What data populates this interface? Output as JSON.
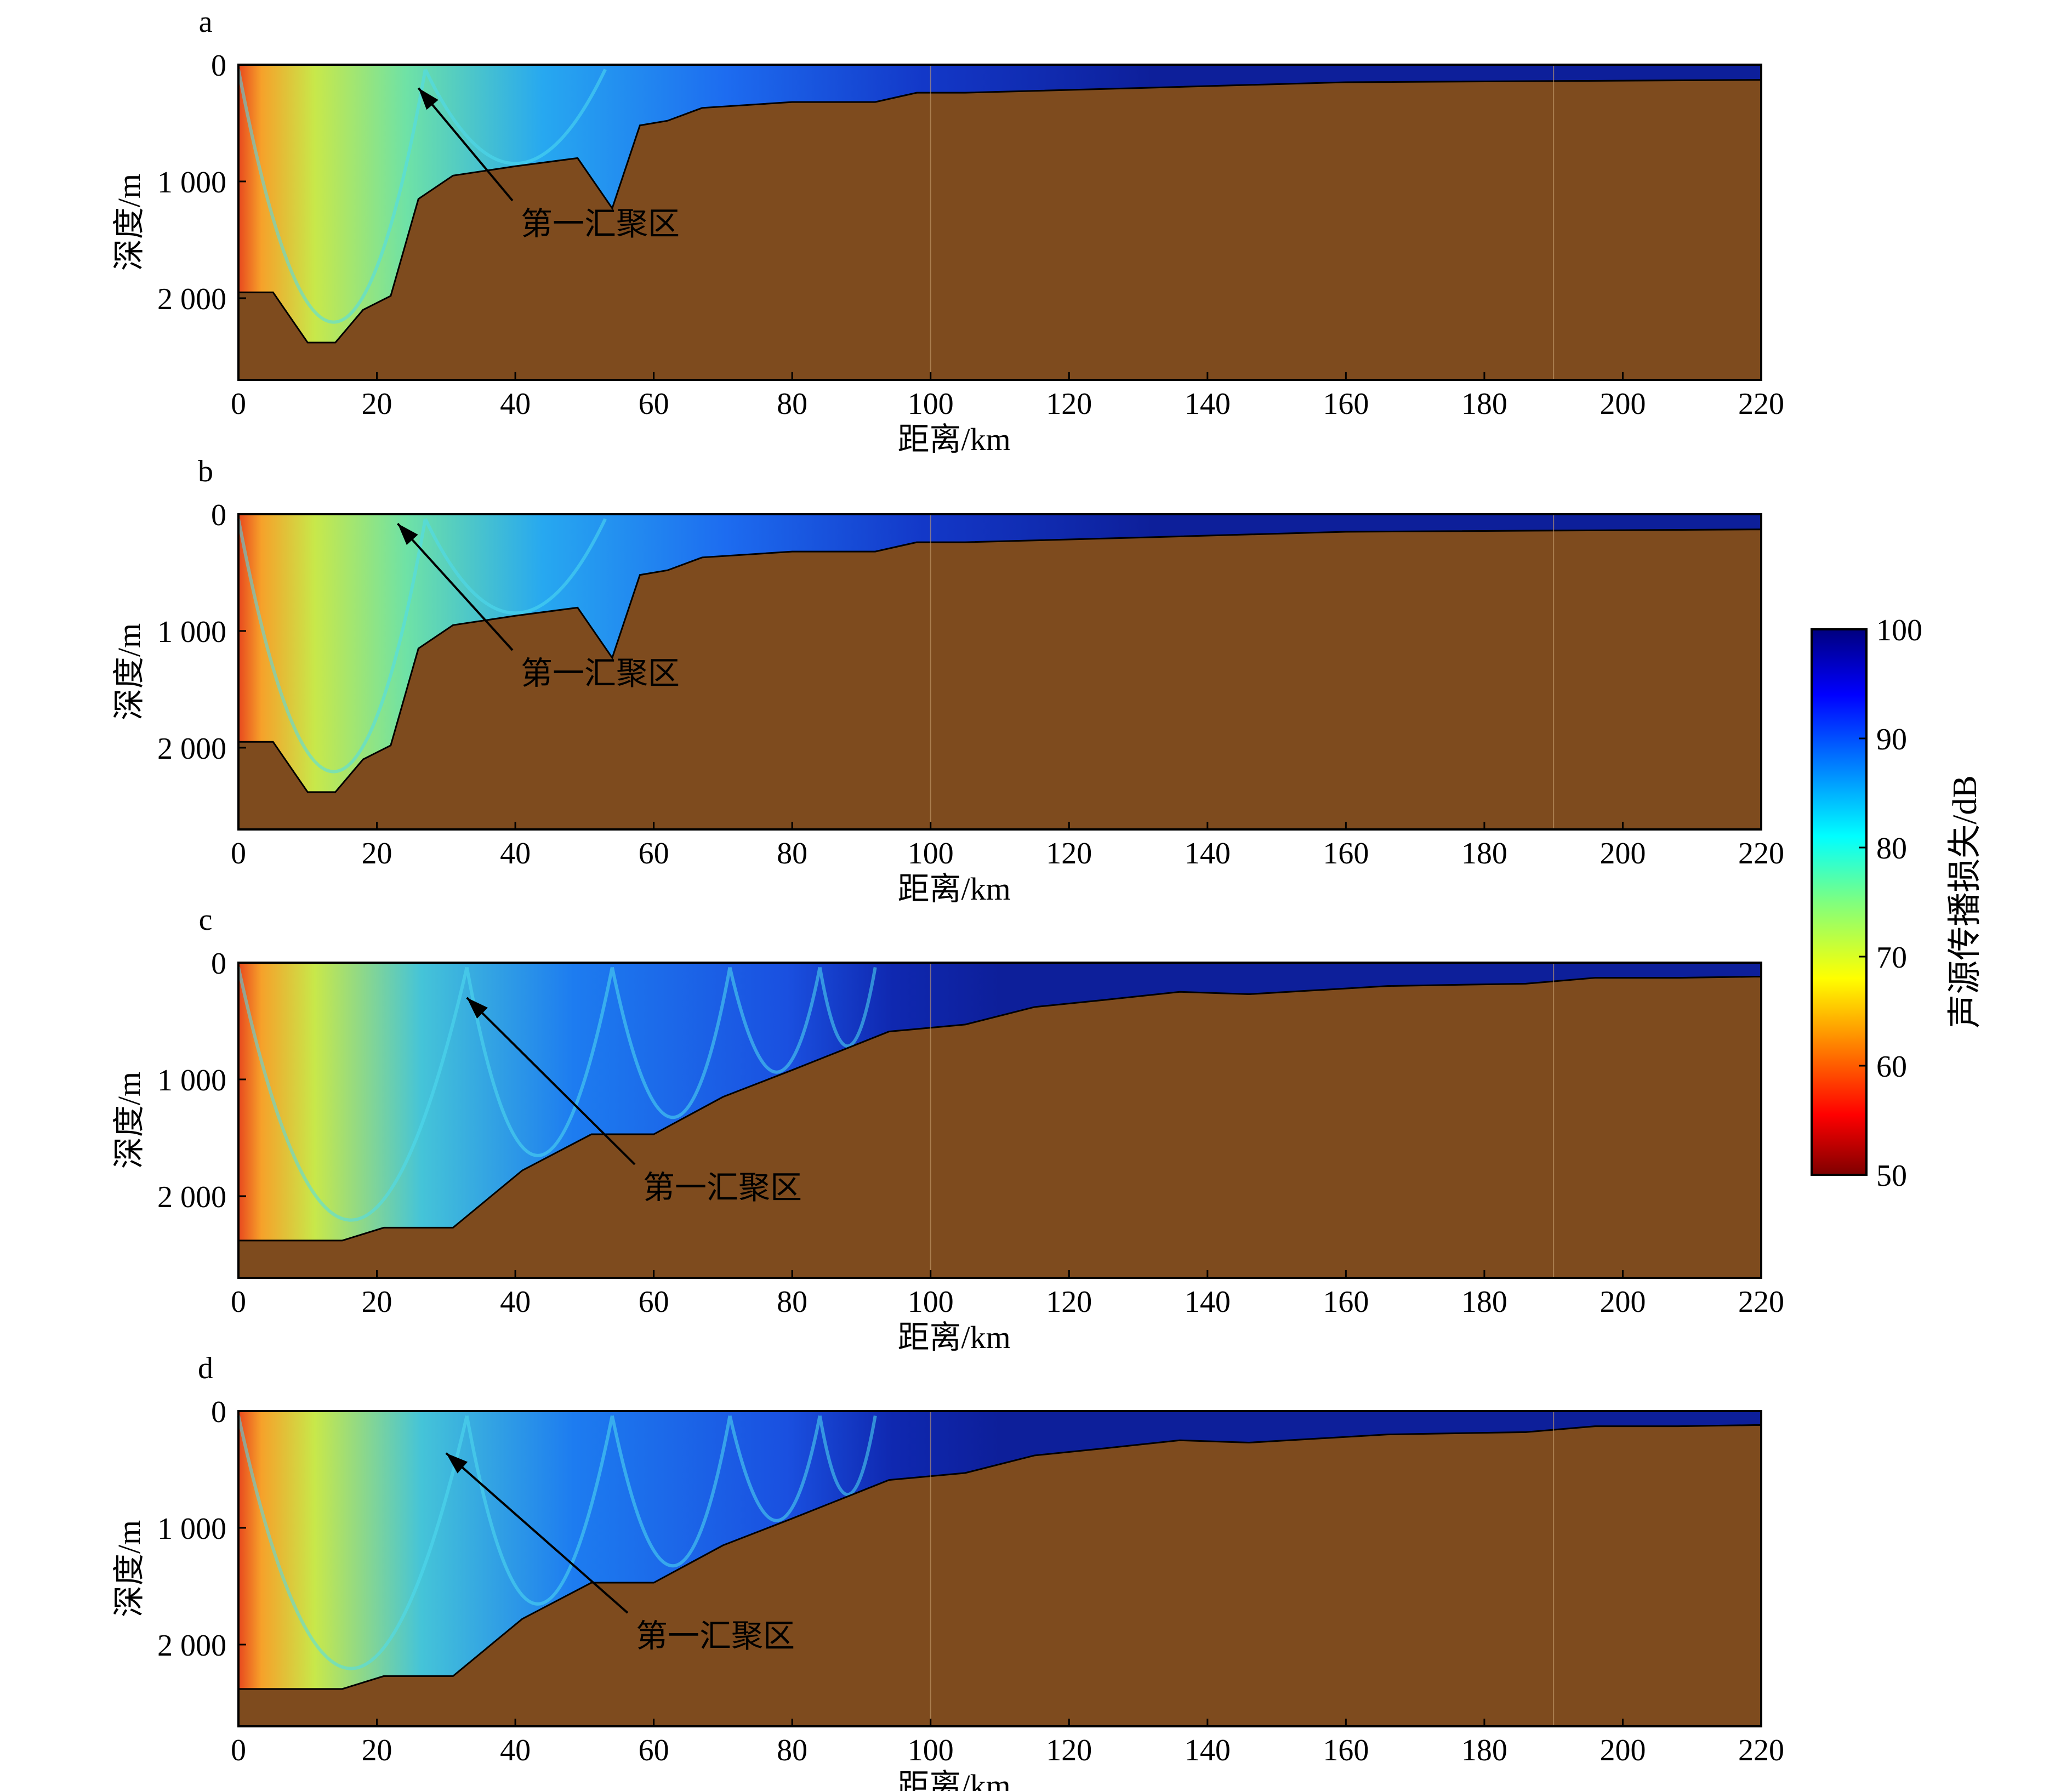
{
  "figure": {
    "depth_label": "深度/m",
    "distance_label": "距离/km",
    "x_ticks": [
      "0",
      "20",
      "40",
      "60",
      "80",
      "100",
      "120",
      "140",
      "160",
      "180",
      "200",
      "220"
    ],
    "y_ticks": [
      "0",
      "1 000",
      "2 000"
    ],
    "annotation_text": "第一汇聚区"
  },
  "colorbar": {
    "label": "声源传播损失/dB",
    "ticks": [
      "100",
      "90",
      "80",
      "70",
      "60",
      "50"
    ],
    "range": [
      50,
      100
    ],
    "colormap": "jet"
  },
  "colors": {
    "seabed": "#7e4b1e",
    "water_far": "#0d1f9a",
    "water_mid": "#1d6cf0",
    "water_cz": "#27d0ee",
    "water_near": "#c8e84a",
    "source": "#e8481e"
  },
  "chart_data": [
    {
      "type": "heatmap",
      "panel_label": "a",
      "xlabel": "距离/km",
      "ylabel": "深度/m",
      "xlim": [
        0,
        220
      ],
      "ylim": [
        0,
        2700
      ],
      "y_inverted": true,
      "value_range_db": [
        50,
        100
      ],
      "annotation": {
        "text": "第一汇聚区",
        "arrow_to": [
          26,
          200
        ]
      },
      "bathymetry": {
        "range_km": [
          0,
          5,
          10,
          14,
          18,
          22,
          26,
          31,
          40,
          49,
          54,
          58,
          62,
          67,
          80,
          92,
          98,
          105,
          130,
          160,
          220
        ],
        "depth_m": [
          1950,
          1950,
          2380,
          2380,
          2100,
          1980,
          1150,
          950,
          870,
          800,
          1230,
          520,
          480,
          370,
          320,
          320,
          240,
          240,
          200,
          150,
          130
        ]
      }
    },
    {
      "type": "heatmap",
      "panel_label": "b",
      "xlabel": "距离/km",
      "ylabel": "深度/m",
      "xlim": [
        0,
        220
      ],
      "ylim": [
        0,
        2700
      ],
      "y_inverted": true,
      "value_range_db": [
        50,
        100
      ],
      "annotation": {
        "text": "第一汇聚区",
        "arrow_to": [
          23,
          80
        ]
      },
      "bathymetry": {
        "range_km": [
          0,
          5,
          10,
          14,
          18,
          22,
          26,
          31,
          40,
          49,
          54,
          58,
          62,
          67,
          80,
          92,
          98,
          105,
          130,
          160,
          220
        ],
        "depth_m": [
          1950,
          1950,
          2380,
          2380,
          2100,
          1980,
          1150,
          950,
          870,
          800,
          1230,
          520,
          480,
          370,
          320,
          320,
          240,
          240,
          200,
          150,
          130
        ]
      }
    },
    {
      "type": "heatmap",
      "panel_label": "c",
      "xlabel": "距离/km",
      "ylabel": "深度/m",
      "xlim": [
        0,
        220
      ],
      "ylim": [
        0,
        2700
      ],
      "y_inverted": true,
      "value_range_db": [
        50,
        100
      ],
      "annotation": {
        "text": "第一汇聚区",
        "arrow_to": [
          33,
          300
        ]
      },
      "bathymetry": {
        "range_km": [
          0,
          15,
          21,
          31,
          41,
          51,
          60,
          70,
          80,
          94,
          105,
          115,
          125,
          136,
          146,
          166,
          186,
          196,
          208,
          219,
          220
        ],
        "depth_m": [
          2380,
          2380,
          2270,
          2270,
          1780,
          1470,
          1470,
          1150,
          920,
          590,
          530,
          380,
          320,
          250,
          270,
          200,
          180,
          130,
          130,
          120,
          120
        ]
      }
    },
    {
      "type": "heatmap",
      "panel_label": "d",
      "xlabel": "距离/km",
      "ylabel": "深度/m",
      "xlim": [
        0,
        220
      ],
      "ylim": [
        0,
        2700
      ],
      "y_inverted": true,
      "value_range_db": [
        50,
        100
      ],
      "annotation": {
        "text": "第一汇聚区",
        "arrow_to": [
          30,
          360
        ]
      },
      "bathymetry": {
        "range_km": [
          0,
          15,
          21,
          31,
          41,
          51,
          60,
          70,
          80,
          94,
          105,
          115,
          125,
          136,
          146,
          166,
          186,
          196,
          208,
          219,
          220
        ],
        "depth_m": [
          2380,
          2380,
          2270,
          2270,
          1780,
          1470,
          1470,
          1150,
          920,
          590,
          530,
          380,
          320,
          250,
          270,
          200,
          180,
          130,
          130,
          120,
          120
        ]
      }
    }
  ]
}
